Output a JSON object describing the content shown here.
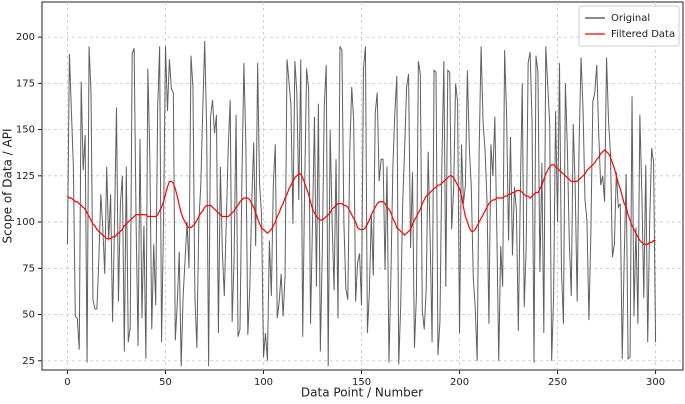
{
  "chart_data": {
    "type": "line",
    "xlabel": "Data Point / Number",
    "ylabel": "Scope of Data / API",
    "x": [
      0,
      1,
      2,
      3,
      4,
      5,
      6,
      7,
      8,
      9,
      10,
      11,
      12,
      13,
      14,
      15,
      16,
      17,
      18,
      19,
      20,
      21,
      22,
      23,
      24,
      25,
      26,
      27,
      28,
      29,
      30,
      31,
      32,
      33,
      34,
      35,
      36,
      37,
      38,
      39,
      40,
      41,
      42,
      43,
      44,
      45,
      46,
      47,
      48,
      49,
      50,
      51,
      52,
      53,
      54,
      55,
      56,
      57,
      58,
      59,
      60,
      61,
      62,
      63,
      64,
      65,
      66,
      67,
      68,
      69,
      70,
      71,
      72,
      73,
      74,
      75,
      76,
      77,
      78,
      79,
      80,
      81,
      82,
      83,
      84,
      85,
      86,
      87,
      88,
      89,
      90,
      91,
      92,
      93,
      94,
      95,
      96,
      97,
      98,
      99,
      100,
      101,
      102,
      103,
      104,
      105,
      106,
      107,
      108,
      109,
      110,
      111,
      112,
      113,
      114,
      115,
      116,
      117,
      118,
      119,
      120,
      121,
      122,
      123,
      124,
      125,
      126,
      127,
      128,
      129,
      130,
      131,
      132,
      133,
      134,
      135,
      136,
      137,
      138,
      139,
      140,
      141,
      142,
      143,
      144,
      145,
      146,
      147,
      148,
      149,
      150,
      151,
      152,
      153,
      154,
      155,
      156,
      157,
      158,
      159,
      160,
      161,
      162,
      163,
      164,
      165,
      166,
      167,
      168,
      169,
      170,
      171,
      172,
      173,
      174,
      175,
      176,
      177,
      178,
      179,
      180,
      181,
      182,
      183,
      184,
      185,
      186,
      187,
      188,
      189,
      190,
      191,
      192,
      193,
      194,
      195,
      196,
      197,
      198,
      199,
      200,
      201,
      202,
      203,
      204,
      205,
      206,
      207,
      208,
      209,
      210,
      211,
      212,
      213,
      214,
      215,
      216,
      217,
      218,
      219,
      220,
      221,
      222,
      223,
      224,
      225,
      226,
      227,
      228,
      229,
      230,
      231,
      232,
      233,
      234,
      235,
      236,
      237,
      238,
      239,
      240,
      241,
      242,
      243,
      244,
      245,
      246,
      247,
      248,
      249,
      250,
      251,
      252,
      253,
      254,
      255,
      256,
      257,
      258,
      259,
      260,
      261,
      262,
      263,
      264,
      265,
      266,
      267,
      268,
      269,
      270,
      271,
      272,
      273,
      274,
      275,
      276,
      277,
      278,
      279,
      280,
      281,
      282,
      283,
      284,
      285,
      286,
      287,
      288,
      289,
      290,
      291,
      292,
      293,
      294,
      295,
      296,
      297,
      298,
      299,
      300
    ],
    "series": [
      {
        "name": "Original",
        "color": "#444444",
        "values": [
          88,
          191,
          160,
          130,
          49,
          48,
          31,
          176,
          128,
          147,
          24,
          195,
          170,
          58,
          53,
          53,
          80,
          115,
          97,
          72,
          130,
          90,
          115,
          46,
          100,
          162,
          57,
          110,
          125,
          30,
          130,
          35,
          43,
          191,
          194,
          100,
          33,
          145,
          48,
          98,
          26,
          183,
          136,
          42,
          88,
          55,
          161,
          195,
          35,
          100,
          195,
          160,
          188,
          172,
          170,
          36,
          56,
          84,
          22,
          60,
          80,
          100,
          75,
          190,
          173,
          60,
          32,
          100,
          120,
          160,
          198,
          150,
          22,
          157,
          166,
          148,
          158,
          40,
          130,
          84,
          60,
          100,
          140,
          166,
          46,
          80,
          158,
          38,
          42,
          124,
          186,
          141,
          39,
          64,
          111,
          143,
          87,
          186,
          120,
          104,
          27,
          40,
          25,
          90,
          60,
          120,
          142,
          48,
          57,
          72,
          49,
          71,
          188,
          176,
          163,
          99,
          187,
          170,
          112,
          188,
          38,
          120,
          183,
          172,
          45,
          100,
          157,
          65,
          164,
          30,
          85,
          163,
          185,
          22,
          150,
          100,
          63,
          134,
          48,
          195,
          193,
          100,
          64,
          58,
          138,
          173,
          155,
          57,
          78,
          83,
          55,
          183,
          195,
          40,
          62,
          104,
          71,
          159,
          170,
          122,
          134,
          134,
          74,
          130,
          24,
          71,
          130,
          159,
          179,
          23,
          55,
          110,
          140,
          173,
          180,
          86,
          127,
          32,
          60,
          187,
          180,
          52,
          42,
          64,
          138,
          91,
          35,
          182,
          181,
          28,
          46,
          132,
          187,
          65,
          182,
          181,
          96,
          118,
          175,
          165,
          40,
          142,
          110,
          120,
          182,
          140,
          119,
          70,
          54,
          25,
          138,
          195,
          154,
          139,
          112,
          45,
          142,
          125,
          157,
          97,
          25,
          87,
          65,
          193,
          158,
          90,
          146,
          82,
          119,
          107,
          41,
          115,
          175,
          54,
          86,
          186,
          192,
          154,
          24,
          190,
          181,
          73,
          132,
          40,
          195,
          174,
          153,
          25,
          60,
          160,
          100,
          186,
          74,
          45,
          175,
          140,
          89,
          60,
          153,
          119,
          57,
          142,
          189,
          161,
          112,
          101,
          47,
          94,
          165,
          170,
          185,
          148,
          120,
          125,
          111,
          189,
          155,
          137,
          81,
          88,
          127,
          108,
          110,
          26,
          80,
          126,
          26,
          27,
          168,
          49,
          97,
          45,
          158,
          116,
          59,
          131,
          35,
          100,
          140,
          132,
          35
        ]
      },
      {
        "name": "Filtered Data",
        "color": "#ff0000",
        "values": [
          114,
          113,
          113,
          112,
          111,
          111,
          110,
          109,
          108,
          107,
          105,
          103,
          101,
          99,
          98,
          96,
          95,
          94,
          93,
          92,
          91,
          91,
          91,
          92,
          92,
          93,
          94,
          95,
          96,
          98,
          99,
          100,
          101,
          102,
          103,
          104,
          104,
          104,
          104,
          104,
          104,
          103,
          103,
          103,
          103,
          103,
          104,
          106,
          108,
          111,
          115,
          119,
          122,
          122,
          121,
          118,
          114,
          109,
          105,
          102,
          100,
          98,
          97,
          97,
          98,
          99,
          101,
          103,
          105,
          106,
          108,
          109,
          109,
          109,
          108,
          107,
          106,
          105,
          104,
          103,
          103,
          103,
          103,
          104,
          105,
          106,
          108,
          109,
          111,
          112,
          113,
          113,
          113,
          112,
          110,
          108,
          105,
          102,
          99,
          97,
          96,
          95,
          94,
          95,
          96,
          98,
          100,
          103,
          105,
          108,
          110,
          113,
          115,
          118,
          120,
          122,
          124,
          125,
          126,
          126,
          124,
          121,
          118,
          115,
          111,
          107,
          105,
          103,
          102,
          101,
          101,
          102,
          103,
          104,
          105,
          107,
          108,
          109,
          110,
          110,
          110,
          109,
          109,
          108,
          106,
          104,
          102,
          100,
          97,
          96,
          96,
          96,
          97,
          99,
          101,
          104,
          106,
          108,
          110,
          111,
          111,
          111,
          110,
          108,
          107,
          105,
          102,
          100,
          97,
          96,
          95,
          94,
          93,
          94,
          95,
          96,
          99,
          101,
          103,
          105,
          107,
          110,
          112,
          114,
          115,
          116,
          117,
          118,
          119,
          120,
          120,
          121,
          122,
          123,
          124,
          125,
          125,
          124,
          122,
          120,
          118,
          114,
          108,
          103,
          100,
          97,
          95,
          95,
          96,
          98,
          100,
          102,
          104,
          106,
          108,
          110,
          111,
          112,
          112,
          113,
          113,
          113,
          113,
          114,
          114,
          115,
          115,
          116,
          116,
          117,
          117,
          117,
          116,
          115,
          114,
          114,
          113,
          114,
          115,
          116,
          116,
          118,
          120,
          123,
          126,
          128,
          130,
          131,
          131,
          130,
          129,
          128,
          127,
          126,
          125,
          124,
          123,
          122,
          122,
          122,
          122,
          123,
          124,
          125,
          126,
          128,
          129,
          130,
          131,
          132,
          134,
          135,
          137,
          138,
          139,
          138,
          137,
          135,
          132,
          129,
          125,
          121,
          118,
          114,
          110,
          108,
          104,
          101,
          98,
          96,
          94,
          92,
          90,
          89,
          88,
          88,
          88,
          89,
          89,
          90,
          90
        ]
      }
    ],
    "xlim": [
      -13,
      314
    ],
    "ylim": [
      20,
      219
    ],
    "xticks": [
      0,
      50,
      100,
      150,
      200,
      250,
      300
    ],
    "yticks": [
      25,
      50,
      75,
      100,
      125,
      150,
      175,
      200
    ],
    "grid": true,
    "legend": "upper right"
  }
}
